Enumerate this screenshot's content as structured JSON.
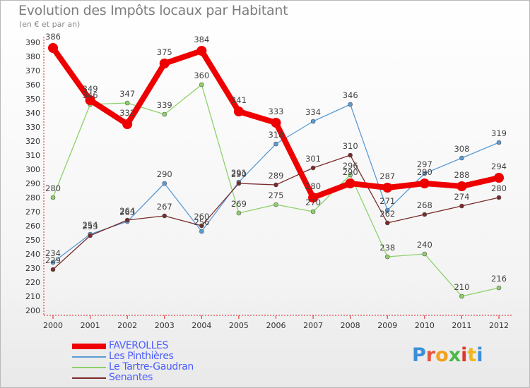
{
  "header": {
    "title": "Evolution des Impôts locaux par Habitant",
    "subtitle": "(en € et par an)"
  },
  "logo": {
    "text": "Proxiti",
    "letter_colors": [
      "#3a8fd8",
      "#e8543c",
      "#f2a01d",
      "#4db848",
      "#e2372b",
      "#f2b61d",
      "#3a8fd8"
    ]
  },
  "chart_data": {
    "type": "line",
    "title": "Evolution des Impôts locaux par Habitant",
    "subtitle": "(en € et par an)",
    "xlabel": "",
    "ylabel": "",
    "x": [
      "2000",
      "2001",
      "2002",
      "2003",
      "2004",
      "2005",
      "2006",
      "2007",
      "2008",
      "2009",
      "2010",
      "2011",
      "2012"
    ],
    "ylim": [
      200,
      390
    ],
    "yticks": [
      200,
      210,
      220,
      230,
      240,
      250,
      260,
      270,
      280,
      290,
      300,
      310,
      320,
      330,
      340,
      350,
      360,
      370,
      380,
      390
    ],
    "grid": false,
    "legend_position": "bottom-left",
    "series": [
      {
        "name": "FAVEROLLES",
        "color": "#ee0000",
        "values": [
          386,
          349,
          332,
          375,
          384,
          341,
          333,
          280,
          290,
          287,
          290,
          288,
          294
        ]
      },
      {
        "name": "Les Pinthières",
        "color": "#5b9bd5",
        "values": [
          234,
          254,
          263,
          290,
          256,
          291,
          318,
          334,
          346,
          271,
          297,
          308,
          319
        ]
      },
      {
        "name": "Le Tartre-Gaudran",
        "color": "#8ed16b",
        "values": [
          280,
          346,
          347,
          339,
          360,
          269,
          275,
          270,
          296,
          238,
          240,
          210,
          216
        ]
      },
      {
        "name": "Senantes",
        "color": "#7a2a2a",
        "values": [
          229,
          253,
          264,
          267,
          260,
          290,
          289,
          301,
          310,
          262,
          268,
          274,
          280
        ]
      }
    ]
  }
}
